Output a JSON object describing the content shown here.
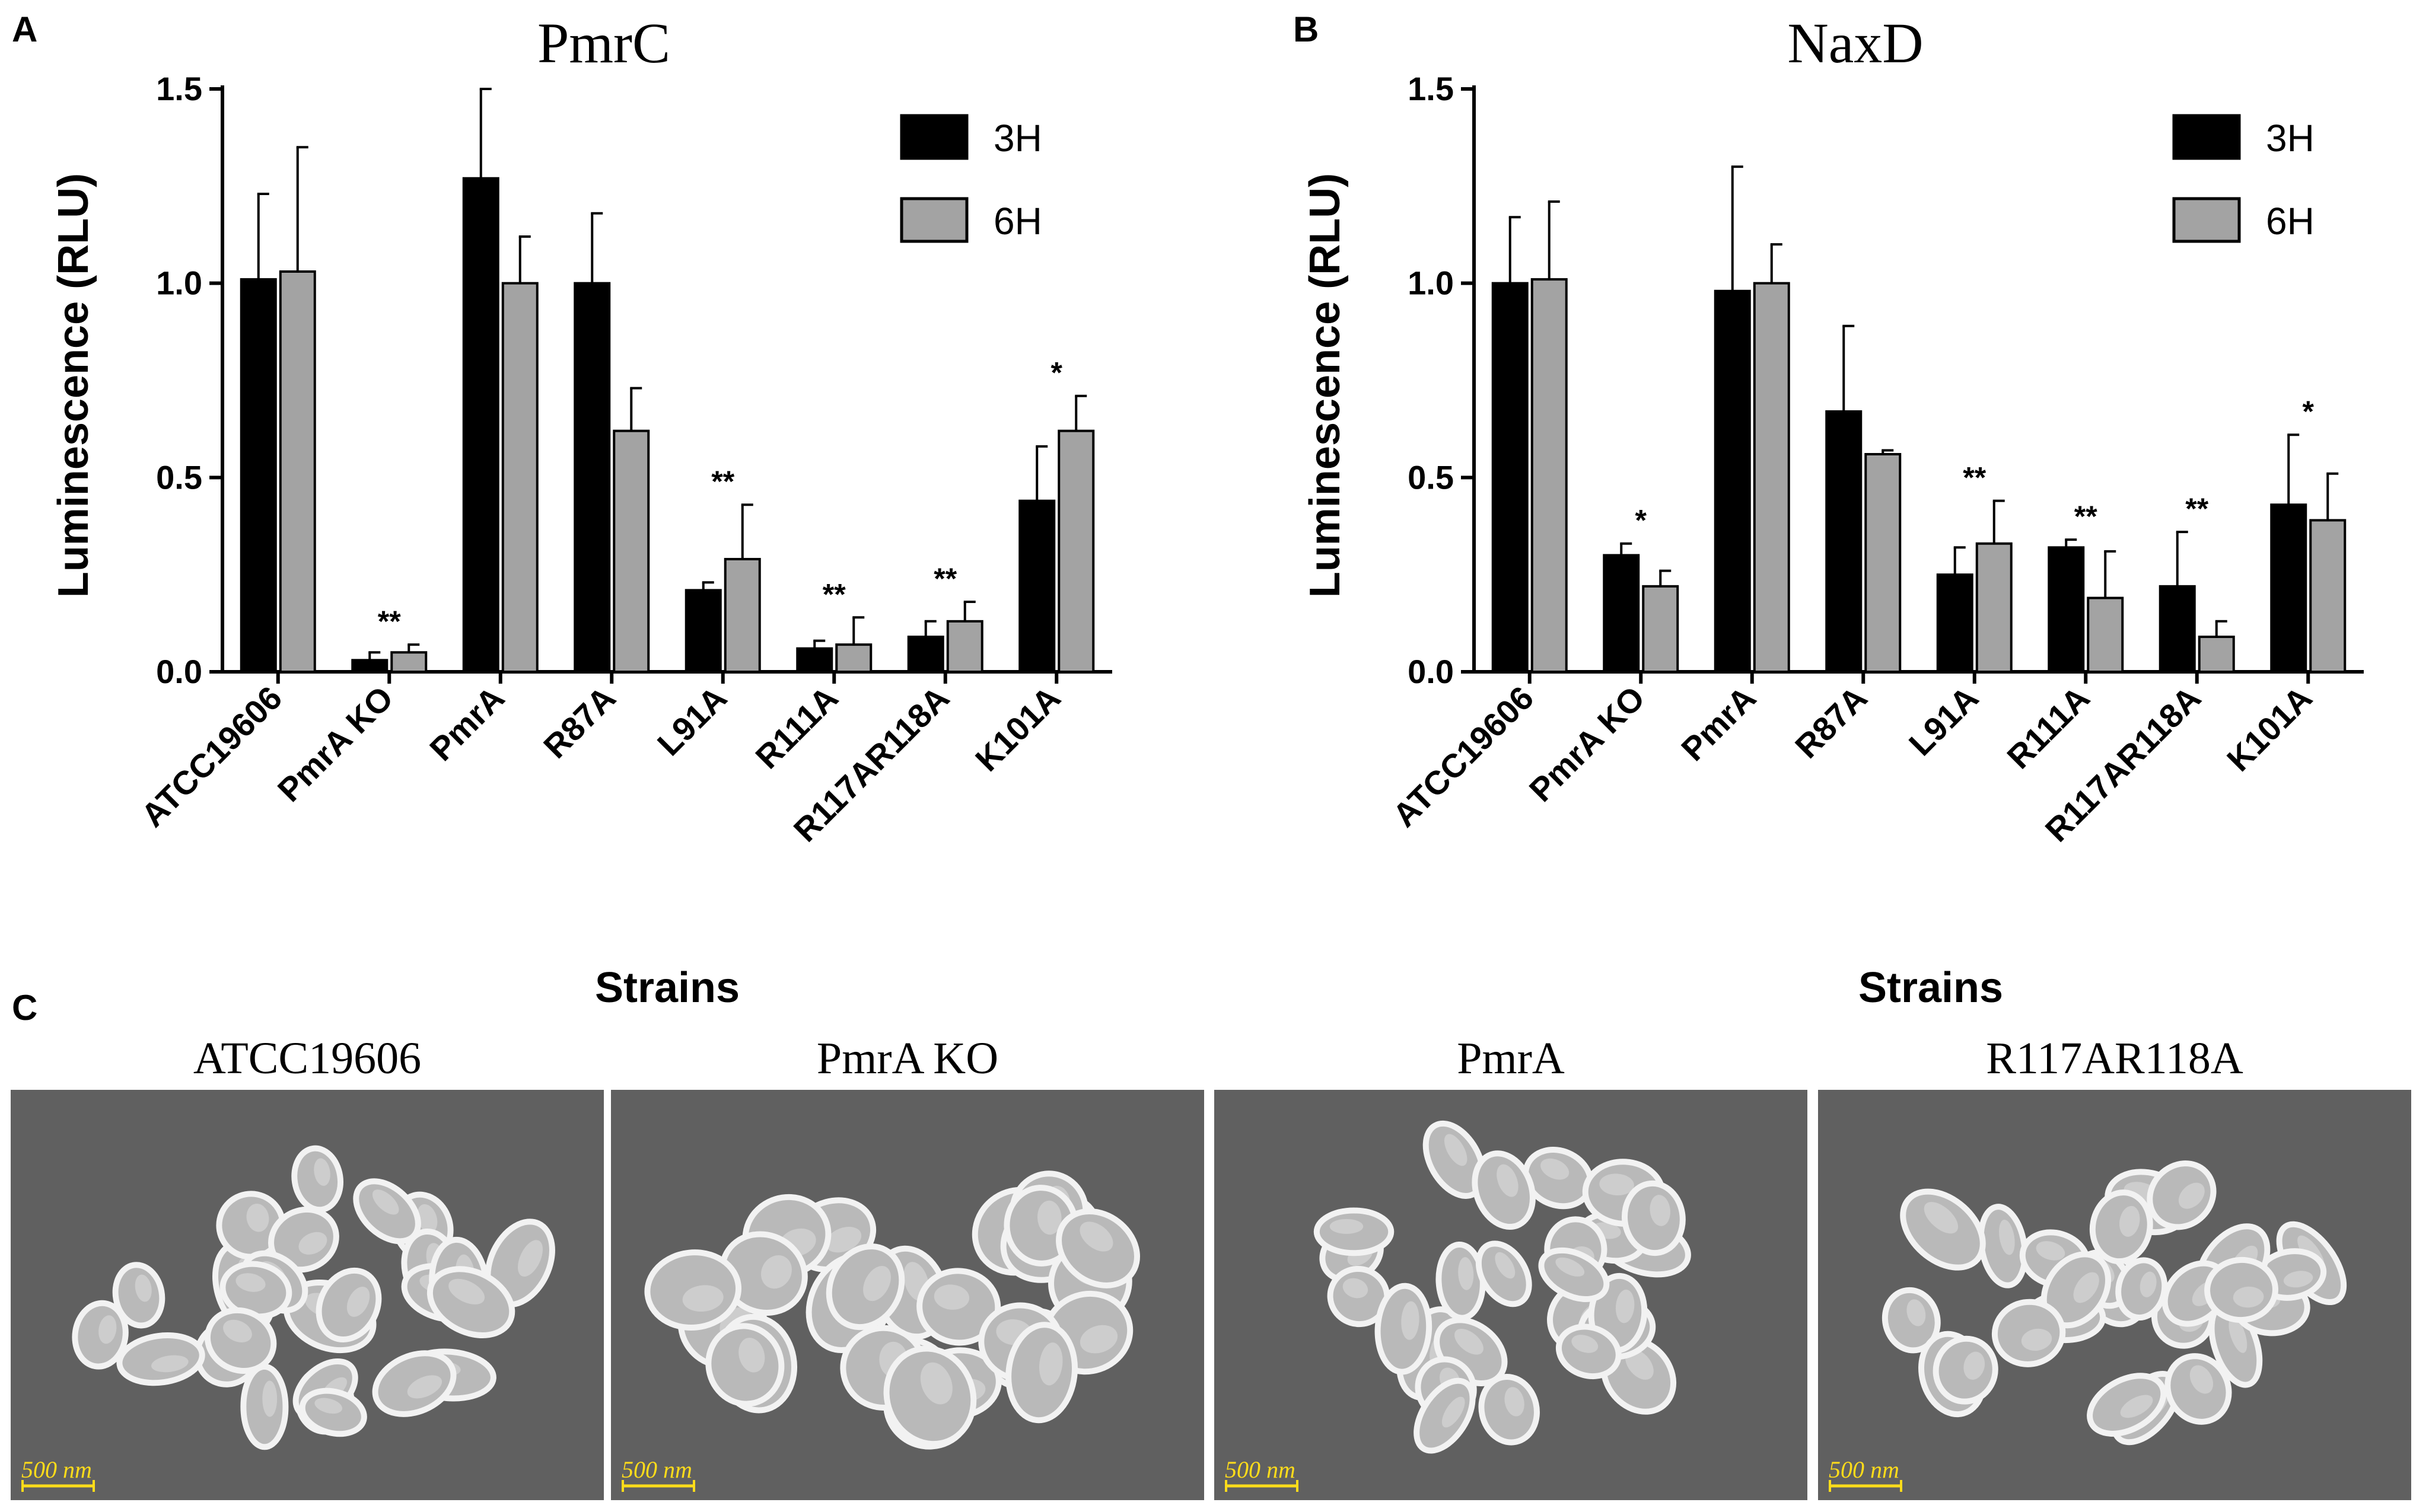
{
  "panels": {
    "a": "A",
    "b": "B",
    "c": "C"
  },
  "chart_data": [
    {
      "type": "bar",
      "title": "PmrC",
      "xlabel": "Strains",
      "ylabel": "Luminescence (RLU)",
      "ylim": [
        0,
        1.5
      ],
      "yticks": [
        "0.0",
        "0.5",
        "1.0",
        "1.5"
      ],
      "legend_position": "top-right",
      "categories": [
        "ATCC19606",
        "PmrA KO",
        "PmrA",
        "R87A",
        "L91A",
        "R111A",
        "R117AR118A",
        "K101A"
      ],
      "series": [
        {
          "name": "3H",
          "color": "#000000",
          "values": [
            1.01,
            0.03,
            1.27,
            1.0,
            0.21,
            0.06,
            0.09,
            0.44
          ],
          "errors": [
            0.22,
            0.02,
            0.23,
            0.18,
            0.02,
            0.02,
            0.04,
            0.14
          ]
        },
        {
          "name": "6H",
          "color": "#a3a3a3",
          "values": [
            1.03,
            0.05,
            1.0,
            0.62,
            0.29,
            0.07,
            0.13,
            0.62
          ],
          "errors": [
            0.32,
            0.02,
            0.12,
            0.11,
            0.14,
            0.07,
            0.05,
            0.09
          ]
        }
      ],
      "annotations": [
        "",
        "**",
        "",
        "",
        "**",
        "**",
        "**",
        "*"
      ]
    },
    {
      "type": "bar",
      "title": "NaxD",
      "xlabel": "Strains",
      "ylabel": "Luminescence (RLU)",
      "ylim": [
        0,
        1.5
      ],
      "yticks": [
        "0.0",
        "0.5",
        "1.0",
        "1.5"
      ],
      "legend_position": "top-right",
      "categories": [
        "ATCC19606",
        "PmrA KO",
        "PmrA",
        "R87A",
        "L91A",
        "R111A",
        "R117AR118A",
        "K101A"
      ],
      "series": [
        {
          "name": "3H",
          "color": "#000000",
          "values": [
            1.0,
            0.3,
            0.98,
            0.67,
            0.25,
            0.32,
            0.22,
            0.43
          ],
          "errors": [
            0.17,
            0.03,
            0.32,
            0.22,
            0.07,
            0.02,
            0.14,
            0.18
          ]
        },
        {
          "name": "6H",
          "color": "#a3a3a3",
          "values": [
            1.01,
            0.22,
            1.0,
            0.56,
            0.33,
            0.19,
            0.09,
            0.39
          ],
          "errors": [
            0.2,
            0.04,
            0.1,
            0.01,
            0.11,
            0.12,
            0.04,
            0.12
          ]
        }
      ],
      "annotations": [
        "",
        "*",
        "",
        "",
        "**",
        "**",
        "**",
        "*"
      ]
    }
  ],
  "sem_panel": {
    "images": [
      {
        "title": "ATCC19606",
        "scale_label": "500 nm",
        "cell_shape": "irregular-collapsed"
      },
      {
        "title": "PmrA KO",
        "scale_label": "500 nm",
        "cell_shape": "smooth-round"
      },
      {
        "title": "PmrA",
        "scale_label": "500 nm",
        "cell_shape": "intermediate"
      },
      {
        "title": "R117AR118A",
        "scale_label": "500 nm",
        "cell_shape": "intermediate"
      }
    ],
    "background_color": "#606060"
  }
}
